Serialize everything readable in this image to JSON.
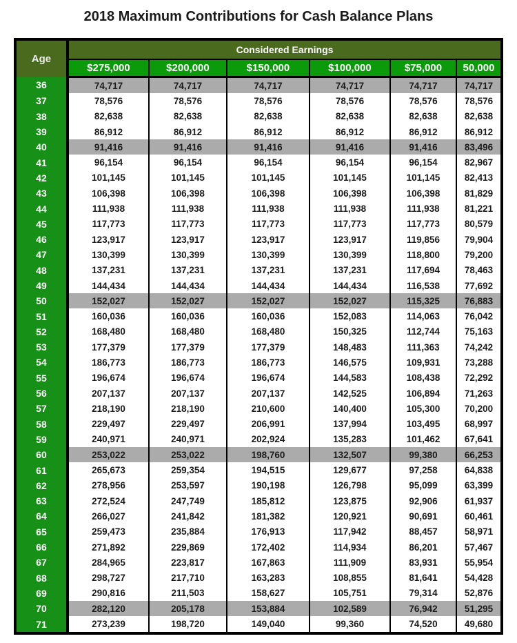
{
  "title": "2018 Maximum Contributions for Cash Balance Plans",
  "colors": {
    "dark_green": "#4a6b1e",
    "bright_green": "#0a9a0a",
    "age_green": "#169016",
    "highlight_gray": "#ababab",
    "border_black": "#000000",
    "text_dark": "#1b1b1b"
  },
  "table": {
    "banner": "Considered Earnings",
    "age_header": "Age",
    "columns": [
      "$275,000",
      "$200,000",
      "$150,000",
      "$100,000",
      "$75,000",
      "50,000"
    ],
    "highlighted_ages": [
      "36",
      "40",
      "50",
      "60",
      "70"
    ],
    "rows": [
      {
        "age": "36",
        "highlight": true,
        "values": [
          "74,717",
          "74,717",
          "74,717",
          "74,717",
          "74,717",
          "74,717"
        ]
      },
      {
        "age": "37",
        "highlight": false,
        "values": [
          "78,576",
          "78,576",
          "78,576",
          "78,576",
          "78,576",
          "78,576"
        ]
      },
      {
        "age": "38",
        "highlight": false,
        "values": [
          "82,638",
          "82,638",
          "82,638",
          "82,638",
          "82,638",
          "82,638"
        ]
      },
      {
        "age": "39",
        "highlight": false,
        "values": [
          "86,912",
          "86,912",
          "86,912",
          "86,912",
          "86,912",
          "86,912"
        ]
      },
      {
        "age": "40",
        "highlight": true,
        "values": [
          "91,416",
          "91,416",
          "91,416",
          "91,416",
          "91,416",
          "83,496"
        ]
      },
      {
        "age": "41",
        "highlight": false,
        "values": [
          "96,154",
          "96,154",
          "96,154",
          "96,154",
          "96,154",
          "82,967"
        ]
      },
      {
        "age": "42",
        "highlight": false,
        "values": [
          "101,145",
          "101,145",
          "101,145",
          "101,145",
          "101,145",
          "82,413"
        ]
      },
      {
        "age": "43",
        "highlight": false,
        "values": [
          "106,398",
          "106,398",
          "106,398",
          "106,398",
          "106,398",
          "81,829"
        ]
      },
      {
        "age": "44",
        "highlight": false,
        "values": [
          "111,938",
          "111,938",
          "111,938",
          "111,938",
          "111,938",
          "81,221"
        ]
      },
      {
        "age": "45",
        "highlight": false,
        "values": [
          "117,773",
          "117,773",
          "117,773",
          "117,773",
          "117,773",
          "80,579"
        ]
      },
      {
        "age": "46",
        "highlight": false,
        "values": [
          "123,917",
          "123,917",
          "123,917",
          "123,917",
          "119,856",
          "79,904"
        ]
      },
      {
        "age": "47",
        "highlight": false,
        "values": [
          "130,399",
          "130,399",
          "130,399",
          "130,399",
          "118,800",
          "79,200"
        ]
      },
      {
        "age": "48",
        "highlight": false,
        "values": [
          "137,231",
          "137,231",
          "137,231",
          "137,231",
          "117,694",
          "78,463"
        ]
      },
      {
        "age": "49",
        "highlight": false,
        "values": [
          "144,434",
          "144,434",
          "144,434",
          "144,434",
          "116,538",
          "77,692"
        ]
      },
      {
        "age": "50",
        "highlight": true,
        "values": [
          "152,027",
          "152,027",
          "152,027",
          "152,027",
          "115,325",
          "76,883"
        ]
      },
      {
        "age": "51",
        "highlight": false,
        "values": [
          "160,036",
          "160,036",
          "160,036",
          "152,083",
          "114,063",
          "76,042"
        ]
      },
      {
        "age": "52",
        "highlight": false,
        "values": [
          "168,480",
          "168,480",
          "168,480",
          "150,325",
          "112,744",
          "75,163"
        ]
      },
      {
        "age": "53",
        "highlight": false,
        "values": [
          "177,379",
          "177,379",
          "177,379",
          "148,483",
          "111,363",
          "74,242"
        ]
      },
      {
        "age": "54",
        "highlight": false,
        "values": [
          "186,773",
          "186,773",
          "186,773",
          "146,575",
          "109,931",
          "73,288"
        ]
      },
      {
        "age": "55",
        "highlight": false,
        "values": [
          "196,674",
          "196,674",
          "196,674",
          "144,583",
          "108,438",
          "72,292"
        ]
      },
      {
        "age": "56",
        "highlight": false,
        "values": [
          "207,137",
          "207,137",
          "207,137",
          "142,525",
          "106,894",
          "71,263"
        ]
      },
      {
        "age": "57",
        "highlight": false,
        "values": [
          "218,190",
          "218,190",
          "210,600",
          "140,400",
          "105,300",
          "70,200"
        ]
      },
      {
        "age": "58",
        "highlight": false,
        "values": [
          "229,497",
          "229,497",
          "206,991",
          "137,994",
          "103,495",
          "68,997"
        ]
      },
      {
        "age": "59",
        "highlight": false,
        "values": [
          "240,971",
          "240,971",
          "202,924",
          "135,283",
          "101,462",
          "67,641"
        ]
      },
      {
        "age": "60",
        "highlight": true,
        "values": [
          "253,022",
          "253,022",
          "198,760",
          "132,507",
          "99,380",
          "66,253"
        ]
      },
      {
        "age": "61",
        "highlight": false,
        "values": [
          "265,673",
          "259,354",
          "194,515",
          "129,677",
          "97,258",
          "64,838"
        ]
      },
      {
        "age": "62",
        "highlight": false,
        "values": [
          "278,956",
          "253,597",
          "190,198",
          "126,798",
          "95,099",
          "63,399"
        ]
      },
      {
        "age": "63",
        "highlight": false,
        "values": [
          "272,524",
          "247,749",
          "185,812",
          "123,875",
          "92,906",
          "61,937"
        ]
      },
      {
        "age": "64",
        "highlight": false,
        "values": [
          "266,027",
          "241,842",
          "181,382",
          "120,921",
          "90,691",
          "60,461"
        ]
      },
      {
        "age": "65",
        "highlight": false,
        "values": [
          "259,473",
          "235,884",
          "176,913",
          "117,942",
          "88,457",
          "58,971"
        ]
      },
      {
        "age": "66",
        "highlight": false,
        "values": [
          "271,892",
          "229,869",
          "172,402",
          "114,934",
          "86,201",
          "57,467"
        ]
      },
      {
        "age": "67",
        "highlight": false,
        "values": [
          "284,965",
          "223,817",
          "167,863",
          "111,909",
          "83,931",
          "55,954"
        ]
      },
      {
        "age": "68",
        "highlight": false,
        "values": [
          "298,727",
          "217,710",
          "163,283",
          "108,855",
          "81,641",
          "54,428"
        ]
      },
      {
        "age": "69",
        "highlight": false,
        "values": [
          "290,816",
          "211,503",
          "158,627",
          "105,751",
          "79,314",
          "52,876"
        ]
      },
      {
        "age": "70",
        "highlight": true,
        "values": [
          "282,120",
          "205,178",
          "153,884",
          "102,589",
          "76,942",
          "51,295"
        ]
      },
      {
        "age": "71",
        "highlight": false,
        "values": [
          "273,239",
          "198,720",
          "149,040",
          "99,360",
          "74,520",
          "49,680"
        ]
      }
    ]
  }
}
